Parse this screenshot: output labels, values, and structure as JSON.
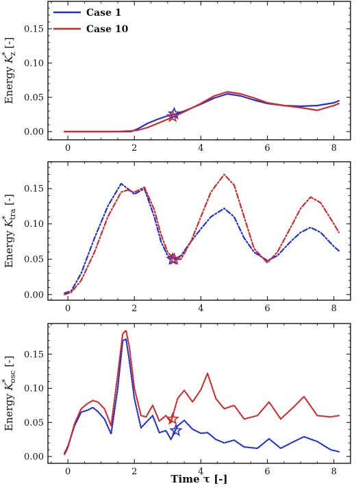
{
  "chart_data": {
    "type": "line",
    "xlabel": "Time τ [-]",
    "legend": {
      "placement": "top-left",
      "entries": [
        {
          "name": "Case 1",
          "color": "#1f2fd6"
        },
        {
          "name": "Case 10",
          "color": "#d62728"
        }
      ]
    },
    "panels": [
      {
        "id": "kz",
        "ylabel": "Energy K*z [-]",
        "ylabel_parts": {
          "prefix": "Energy ",
          "symbol": "K",
          "sup": "*",
          "sub": "z",
          "suffix": " [-]"
        },
        "xlim": [
          -0.6,
          8.5
        ],
        "ylim": [
          -0.012,
          0.19
        ],
        "xticks": [
          "0",
          "2",
          "4",
          "6",
          "8"
        ],
        "xtick_values": [
          0,
          2,
          4,
          6,
          8
        ],
        "yticks": [
          "0.00",
          "0.05",
          "0.10",
          "0.15"
        ],
        "ytick_values": [
          0,
          0.05,
          0.1,
          0.15
        ],
        "line_style": "solid",
        "series": [
          {
            "name": "Case 1",
            "color": "#1f2fd6",
            "x": [
              -0.1,
              0.5,
              1.0,
              1.5,
              1.9,
              2.1,
              2.4,
              2.7,
              3.0,
              3.2,
              3.5,
              4.0,
              4.4,
              4.8,
              5.2,
              5.6,
              6.0,
              6.5,
              7.0,
              7.5,
              8.0,
              8.15
            ],
            "y": [
              0.0,
              0.0,
              0.0,
              0.0,
              0.0,
              0.004,
              0.012,
              0.018,
              0.023,
              0.025,
              0.03,
              0.04,
              0.049,
              0.055,
              0.052,
              0.046,
              0.041,
              0.038,
              0.037,
              0.038,
              0.042,
              0.045
            ],
            "marker": {
              "x": 3.2,
              "y": 0.026,
              "shape": "star"
            }
          },
          {
            "name": "Case 10",
            "color": "#d62728",
            "x": [
              -0.1,
              0.5,
              1.0,
              1.5,
              1.9,
              2.1,
              2.4,
              2.7,
              3.0,
              3.2,
              3.5,
              4.0,
              4.4,
              4.8,
              5.2,
              5.6,
              6.0,
              6.5,
              7.0,
              7.5,
              8.0,
              8.15
            ],
            "y": [
              0.0,
              0.0,
              0.0,
              0.0,
              0.001,
              0.002,
              0.006,
              0.012,
              0.018,
              0.022,
              0.029,
              0.041,
              0.052,
              0.058,
              0.055,
              0.049,
              0.042,
              0.038,
              0.035,
              0.031,
              0.038,
              0.041
            ],
            "marker": {
              "x": 3.15,
              "y": 0.022,
              "shape": "star"
            }
          }
        ]
      },
      {
        "id": "ktra",
        "ylabel": "Energy K*tra [-]",
        "ylabel_parts": {
          "prefix": "Energy ",
          "symbol": "K",
          "sup": "*",
          "sub": "tra",
          "suffix": " [-]"
        },
        "xlim": [
          -0.6,
          8.5
        ],
        "ylim": [
          -0.008,
          0.188
        ],
        "xticks": [
          "0",
          "2",
          "4",
          "6",
          "8"
        ],
        "xtick_values": [
          0,
          2,
          4,
          6,
          8
        ],
        "yticks": [
          "0.00",
          "0.05",
          "0.10",
          "0.15"
        ],
        "ytick_values": [
          0,
          0.05,
          0.1,
          0.15
        ],
        "line_style": "dashdot",
        "series": [
          {
            "name": "Case 1",
            "color": "#1f2fd6",
            "x": [
              -0.1,
              0.1,
              0.4,
              0.8,
              1.2,
              1.6,
              1.8,
              2.0,
              2.3,
              2.6,
              2.8,
              3.0,
              3.2,
              3.4,
              3.7,
              4.0,
              4.3,
              4.7,
              5.0,
              5.3,
              5.6,
              6.0,
              6.3,
              6.7,
              7.0,
              7.3,
              7.6,
              8.0,
              8.15
            ],
            "y": [
              0.002,
              0.005,
              0.03,
              0.08,
              0.125,
              0.157,
              0.15,
              0.142,
              0.15,
              0.11,
              0.075,
              0.055,
              0.05,
              0.055,
              0.075,
              0.093,
              0.11,
              0.122,
              0.11,
              0.08,
              0.06,
              0.048,
              0.055,
              0.075,
              0.088,
              0.095,
              0.088,
              0.068,
              0.062
            ],
            "marker": {
              "x": 3.15,
              "y": 0.05,
              "shape": "star"
            }
          },
          {
            "name": "Case 10",
            "color": "#d62728",
            "x": [
              -0.1,
              0.1,
              0.4,
              0.8,
              1.2,
              1.6,
              1.8,
              2.0,
              2.3,
              2.6,
              2.8,
              3.0,
              3.2,
              3.4,
              3.7,
              4.0,
              4.3,
              4.7,
              5.0,
              5.3,
              5.6,
              6.0,
              6.3,
              6.7,
              7.0,
              7.3,
              7.6,
              8.0,
              8.15
            ],
            "y": [
              0.0,
              0.003,
              0.02,
              0.06,
              0.11,
              0.145,
              0.148,
              0.145,
              0.152,
              0.12,
              0.085,
              0.06,
              0.05,
              0.05,
              0.075,
              0.11,
              0.145,
              0.17,
              0.155,
              0.11,
              0.065,
              0.045,
              0.06,
              0.095,
              0.122,
              0.138,
              0.13,
              0.1,
              0.088
            ],
            "marker": {
              "x": 3.2,
              "y": 0.05,
              "shape": "star"
            }
          }
        ]
      },
      {
        "id": "kosc",
        "ylabel": "Energy K*osc [-]",
        "ylabel_parts": {
          "prefix": "Energy ",
          "symbol": "K",
          "sup": "*",
          "sub": "osc",
          "suffix": " [-]"
        },
        "xlim": [
          -0.6,
          8.5
        ],
        "ylim": [
          -0.01,
          0.195
        ],
        "xticks": [
          "0",
          "2",
          "4",
          "6",
          "8"
        ],
        "xtick_values": [
          0,
          2,
          4,
          6,
          8
        ],
        "yticks": [
          "0.00",
          "0.05",
          "0.10",
          "0.15"
        ],
        "ytick_values": [
          0,
          0.05,
          0.1,
          0.15
        ],
        "line_style": "dotted",
        "series": [
          {
            "name": "Case 1",
            "color": "#1f2fd6",
            "x": [
              -0.1,
              0.0,
              0.2,
              0.4,
              0.6,
              0.75,
              0.9,
              1.1,
              1.3,
              1.5,
              1.65,
              1.75,
              1.85,
              2.0,
              2.2,
              2.35,
              2.55,
              2.75,
              2.95,
              3.1,
              3.3,
              3.5,
              3.75,
              4.0,
              4.2,
              4.45,
              4.7,
              5.0,
              5.3,
              5.7,
              6.05,
              6.4,
              6.8,
              7.1,
              7.5,
              7.9,
              8.15
            ],
            "y": [
              0.005,
              0.015,
              0.045,
              0.065,
              0.068,
              0.072,
              0.066,
              0.055,
              0.033,
              0.1,
              0.17,
              0.172,
              0.14,
              0.085,
              0.042,
              0.05,
              0.06,
              0.035,
              0.038,
              0.025,
              0.045,
              0.053,
              0.04,
              0.034,
              0.035,
              0.025,
              0.02,
              0.024,
              0.014,
              0.012,
              0.026,
              0.012,
              0.022,
              0.029,
              0.022,
              0.01,
              0.007
            ],
            "marker": {
              "x": 3.25,
              "y": 0.038,
              "shape": "star"
            }
          },
          {
            "name": "Case 10",
            "color": "#d62728",
            "x": [
              -0.1,
              0.0,
              0.2,
              0.4,
              0.6,
              0.75,
              0.9,
              1.1,
              1.3,
              1.5,
              1.65,
              1.75,
              1.85,
              2.0,
              2.2,
              2.35,
              2.55,
              2.75,
              2.95,
              3.1,
              3.3,
              3.5,
              3.75,
              4.0,
              4.2,
              4.45,
              4.7,
              5.0,
              5.3,
              5.7,
              6.05,
              6.4,
              6.8,
              7.1,
              7.5,
              7.9,
              8.15
            ],
            "y": [
              0.003,
              0.013,
              0.048,
              0.07,
              0.078,
              0.082,
              0.08,
              0.07,
              0.045,
              0.12,
              0.18,
              0.185,
              0.16,
              0.1,
              0.06,
              0.058,
              0.075,
              0.052,
              0.06,
              0.05,
              0.085,
              0.097,
              0.08,
              0.098,
              0.122,
              0.085,
              0.07,
              0.075,
              0.055,
              0.06,
              0.08,
              0.055,
              0.073,
              0.088,
              0.06,
              0.058,
              0.06
            ],
            "marker": {
              "x": 3.15,
              "y": 0.055,
              "shape": "star"
            }
          }
        ]
      }
    ]
  }
}
